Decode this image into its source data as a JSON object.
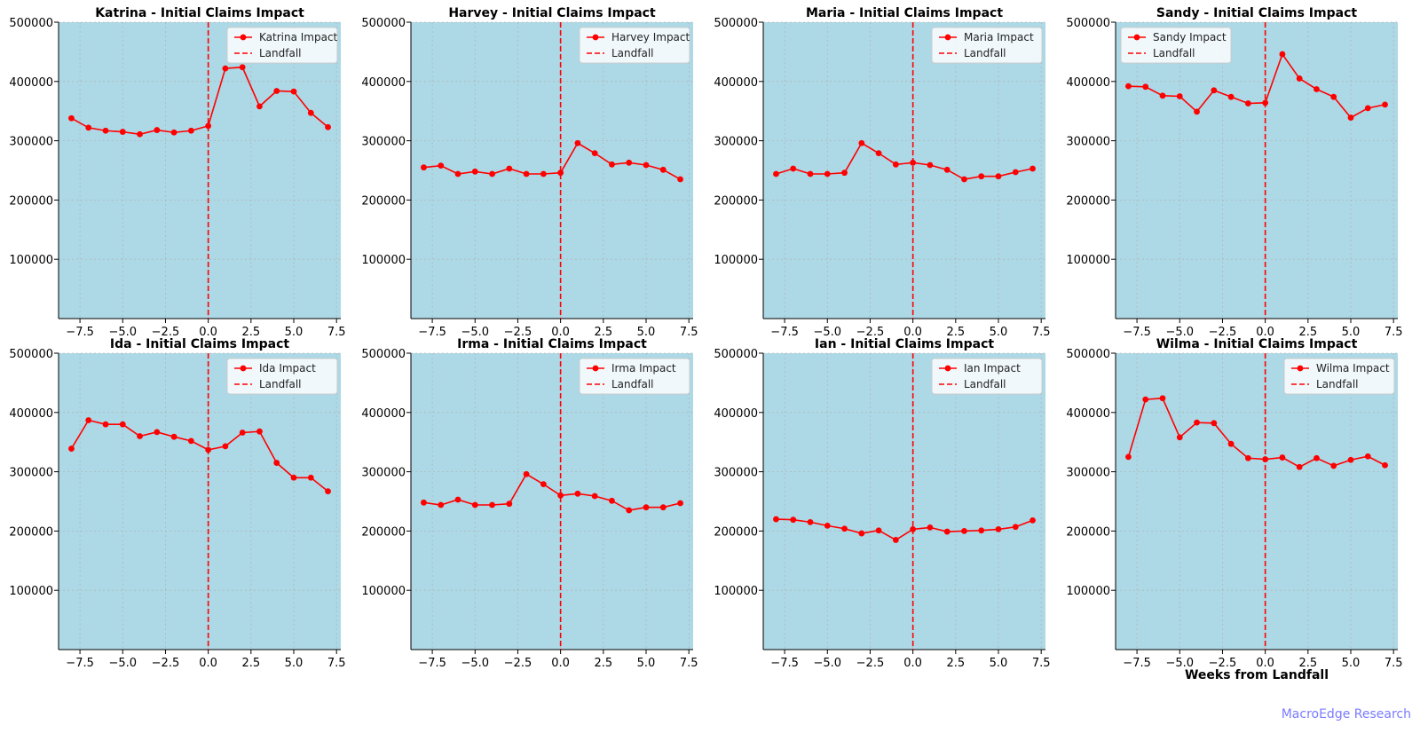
{
  "chart_data": [
    {
      "type": "line",
      "title": "Katrina - Initial Claims Impact",
      "series": [
        {
          "name": "Katrina Impact",
          "values": [
            338000,
            322000,
            317000,
            315000,
            311000,
            318000,
            314000,
            317000,
            325000,
            422000,
            424000,
            358000,
            384000,
            383000,
            347000,
            323000
          ]
        },
        {
          "name": "Landfall",
          "x": 0
        }
      ],
      "x": [
        -8,
        -7,
        -6,
        -5,
        -4,
        -3,
        -2,
        -1,
        0,
        1,
        2,
        3,
        4,
        5,
        6,
        7
      ],
      "xlim": [
        -8.75,
        7.75
      ],
      "ylim": [
        0,
        500000
      ],
      "xticks": [
        "−7.5",
        "−5.0",
        "−2.5",
        "0.0",
        "2.5",
        "5.0",
        "7.5"
      ],
      "yticks": [
        "100000",
        "200000",
        "300000",
        "400000",
        "500000"
      ],
      "xlabel": "",
      "grid": true,
      "legend": "top-right"
    },
    {
      "type": "line",
      "title": "Harvey - Initial Claims Impact",
      "series": [
        {
          "name": "Harvey Impact",
          "values": [
            255000,
            258000,
            244000,
            248000,
            244000,
            253000,
            244000,
            244000,
            246000,
            296000,
            279000,
            260000,
            263000,
            259000,
            251000,
            235000
          ]
        },
        {
          "name": "Landfall",
          "x": 0
        }
      ],
      "x": [
        -8,
        -7,
        -6,
        -5,
        -4,
        -3,
        -2,
        -1,
        0,
        1,
        2,
        3,
        4,
        5,
        6,
        7
      ],
      "xlim": [
        -8.75,
        7.75
      ],
      "ylim": [
        0,
        500000
      ],
      "xticks": [
        "−7.5",
        "−5.0",
        "−2.5",
        "0.0",
        "2.5",
        "5.0",
        "7.5"
      ],
      "yticks": [
        "100000",
        "200000",
        "300000",
        "400000",
        "500000"
      ],
      "xlabel": "",
      "grid": true,
      "legend": "top-right"
    },
    {
      "type": "line",
      "title": "Maria - Initial Claims Impact",
      "series": [
        {
          "name": "Maria Impact",
          "values": [
            244000,
            253000,
            244000,
            244000,
            246000,
            296000,
            279000,
            260000,
            263000,
            259000,
            251000,
            235000,
            240000,
            240000,
            247000,
            253000
          ]
        },
        {
          "name": "Landfall",
          "x": 0
        }
      ],
      "x": [
        -8,
        -7,
        -6,
        -5,
        -4,
        -3,
        -2,
        -1,
        0,
        1,
        2,
        3,
        4,
        5,
        6,
        7
      ],
      "xlim": [
        -8.75,
        7.75
      ],
      "ylim": [
        0,
        500000
      ],
      "xticks": [
        "−7.5",
        "−5.0",
        "−2.5",
        "0.0",
        "2.5",
        "5.0",
        "7.5"
      ],
      "yticks": [
        "100000",
        "200000",
        "300000",
        "400000",
        "500000"
      ],
      "xlabel": "",
      "grid": true,
      "legend": "top-right"
    },
    {
      "type": "line",
      "title": "Sandy - Initial Claims Impact",
      "series": [
        {
          "name": "Sandy Impact",
          "values": [
            392000,
            391000,
            376000,
            375000,
            349000,
            385000,
            374000,
            363000,
            364000,
            446000,
            405000,
            387000,
            374000,
            339000,
            355000,
            361000
          ]
        },
        {
          "name": "Landfall",
          "x": 0
        }
      ],
      "x": [
        -8,
        -7,
        -6,
        -5,
        -4,
        -3,
        -2,
        -1,
        0,
        1,
        2,
        3,
        4,
        5,
        6,
        7
      ],
      "xlim": [
        -8.75,
        7.75
      ],
      "ylim": [
        0,
        500000
      ],
      "xticks": [
        "−7.5",
        "−5.0",
        "−2.5",
        "0.0",
        "2.5",
        "5.0",
        "7.5"
      ],
      "yticks": [
        "100000",
        "200000",
        "300000",
        "400000",
        "500000"
      ],
      "xlabel": "",
      "grid": true,
      "legend": "top-left"
    },
    {
      "type": "line",
      "title": "Ida - Initial Claims Impact",
      "series": [
        {
          "name": "Ida Impact",
          "values": [
            339000,
            387000,
            380000,
            380000,
            360000,
            367000,
            359000,
            352000,
            337000,
            343000,
            366000,
            368000,
            315000,
            290000,
            290000,
            267000
          ]
        },
        {
          "name": "Landfall",
          "x": 0
        }
      ],
      "x": [
        -8,
        -7,
        -6,
        -5,
        -4,
        -3,
        -2,
        -1,
        0,
        1,
        2,
        3,
        4,
        5,
        6,
        7
      ],
      "xlim": [
        -8.75,
        7.75
      ],
      "ylim": [
        0,
        500000
      ],
      "xticks": [
        "−7.5",
        "−5.0",
        "−2.5",
        "0.0",
        "2.5",
        "5.0",
        "7.5"
      ],
      "yticks": [
        "100000",
        "200000",
        "300000",
        "400000",
        "500000"
      ],
      "xlabel": "",
      "grid": true,
      "legend": "top-right"
    },
    {
      "type": "line",
      "title": "Irma - Initial Claims Impact",
      "series": [
        {
          "name": "Irma Impact",
          "values": [
            248000,
            244000,
            253000,
            244000,
            244000,
            246000,
            296000,
            279000,
            260000,
            263000,
            259000,
            251000,
            235000,
            240000,
            240000,
            247000
          ]
        },
        {
          "name": "Landfall",
          "x": 0
        }
      ],
      "x": [
        -8,
        -7,
        -6,
        -5,
        -4,
        -3,
        -2,
        -1,
        0,
        1,
        2,
        3,
        4,
        5,
        6,
        7
      ],
      "xlim": [
        -8.75,
        7.75
      ],
      "ylim": [
        0,
        500000
      ],
      "xticks": [
        "−7.5",
        "−5.0",
        "−2.5",
        "0.0",
        "2.5",
        "5.0",
        "7.5"
      ],
      "yticks": [
        "100000",
        "200000",
        "300000",
        "400000",
        "500000"
      ],
      "xlabel": "",
      "grid": true,
      "legend": "top-right"
    },
    {
      "type": "line",
      "title": "Ian - Initial Claims Impact",
      "series": [
        {
          "name": "Ian Impact",
          "values": [
            220000,
            219000,
            215000,
            209000,
            204000,
            196000,
            201000,
            185000,
            203000,
            206000,
            199000,
            200000,
            201000,
            203000,
            207000,
            218000
          ]
        },
        {
          "name": "Landfall",
          "x": 0
        }
      ],
      "x": [
        -8,
        -7,
        -6,
        -5,
        -4,
        -3,
        -2,
        -1,
        0,
        1,
        2,
        3,
        4,
        5,
        6,
        7
      ],
      "xlim": [
        -8.75,
        7.75
      ],
      "ylim": [
        0,
        500000
      ],
      "xticks": [
        "−7.5",
        "−5.0",
        "−2.5",
        "0.0",
        "2.5",
        "5.0",
        "7.5"
      ],
      "yticks": [
        "100000",
        "200000",
        "300000",
        "400000",
        "500000"
      ],
      "xlabel": "",
      "grid": true,
      "legend": "top-right"
    },
    {
      "type": "line",
      "title": "Wilma - Initial Claims Impact",
      "series": [
        {
          "name": "Wilma Impact",
          "values": [
            325000,
            422000,
            424000,
            358000,
            383000,
            382000,
            347000,
            323000,
            321000,
            324000,
            308000,
            323000,
            310000,
            320000,
            326000,
            311000
          ]
        },
        {
          "name": "Landfall",
          "x": 0
        }
      ],
      "x": [
        -8,
        -7,
        -6,
        -5,
        -4,
        -3,
        -2,
        -1,
        0,
        1,
        2,
        3,
        4,
        5,
        6,
        7
      ],
      "xlim": [
        -8.75,
        7.75
      ],
      "ylim": [
        0,
        500000
      ],
      "xticks": [
        "−7.5",
        "−5.0",
        "−2.5",
        "0.0",
        "2.5",
        "5.0",
        "7.5"
      ],
      "yticks": [
        "100000",
        "200000",
        "300000",
        "400000",
        "500000"
      ],
      "xlabel": "Weeks from Landfall",
      "grid": true,
      "legend": "top-right"
    }
  ],
  "colors": {
    "plot_background": "#add8e6",
    "line": "#ff0000",
    "landfall": "#ff0000",
    "grid": "#b0b0b0",
    "watermark": "#7b7bff"
  },
  "watermark": "MacroEdge Research"
}
